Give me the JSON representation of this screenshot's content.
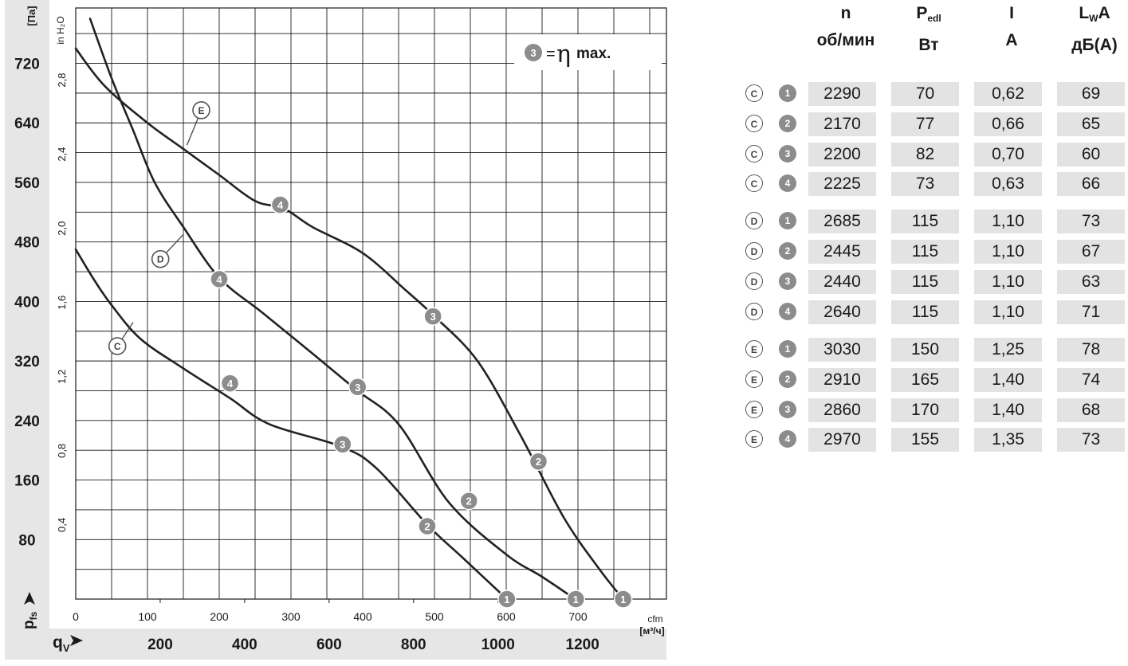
{
  "chart_data": {
    "type": "line",
    "x_primary": {
      "label": "cfm",
      "ticks": [
        0,
        100,
        200,
        300,
        400,
        500,
        600,
        700
      ],
      "range": [
        0,
        820
      ]
    },
    "x_secondary": {
      "symbol": "q",
      "symbol_sub": "V",
      "unit": "[м³/ч]",
      "ticks": [
        200,
        400,
        600,
        800,
        1000,
        1200
      ]
    },
    "y_primary": {
      "symbol": "p",
      "symbol_sub": "fs",
      "unit": "[Па]",
      "ticks": [
        80,
        160,
        240,
        320,
        400,
        480,
        560,
        640,
        720
      ],
      "range": [
        0,
        782
      ]
    },
    "y_secondary": {
      "unit": "in H₂O",
      "ticks": [
        "0,4",
        "0,8",
        "1,2",
        "1,6",
        "2,0",
        "2,4",
        "2,8"
      ]
    },
    "legend": {
      "marker": "3",
      "text": "=",
      "eta": "η",
      "max": "max."
    },
    "series": [
      {
        "name": "C",
        "x": [
          0,
          25,
          50,
          90,
          150,
          215,
          270,
          370,
          420,
          490,
          540,
          601
        ],
        "y": [
          470,
          430,
          395,
          350,
          310,
          270,
          235,
          205,
          175,
          100,
          55,
          0
        ],
        "label_at": [
          58,
          340
        ],
        "leader_to": [
          80,
          372
        ]
      },
      {
        "name": "D",
        "x": [
          20,
          50,
          80,
          110,
          150,
          200,
          260,
          330,
          390,
          450,
          520,
          600,
          650,
          696
        ],
        "y": [
          780,
          700,
          630,
          560,
          500,
          432,
          385,
          330,
          282,
          235,
          130,
          60,
          30,
          0
        ],
        "label_at": [
          118,
          457
        ],
        "leader_to": [
          150,
          490
        ]
      },
      {
        "name": "E",
        "x": [
          0,
          40,
          100,
          150,
          200,
          250,
          290,
          330,
          400,
          460,
          500,
          560,
          620,
          680,
          730,
          763
        ],
        "y": [
          740,
          690,
          640,
          605,
          570,
          535,
          525,
          500,
          465,
          415,
          380,
          320,
          220,
          110,
          40,
          0
        ],
        "label_at": [
          175,
          657
        ],
        "leader_to": [
          155,
          610
        ]
      }
    ],
    "operating_points": [
      {
        "label": "4",
        "series": "C",
        "x": 215,
        "y": 290
      },
      {
        "label": "3",
        "series": "C",
        "x": 372,
        "y": 208
      },
      {
        "label": "2",
        "series": "C",
        "x": 490,
        "y": 98
      },
      {
        "label": "1",
        "series": "C",
        "x": 601,
        "y": 0
      },
      {
        "label": "4",
        "series": "D",
        "x": 200,
        "y": 430
      },
      {
        "label": "3",
        "series": "D",
        "x": 393,
        "y": 285
      },
      {
        "label": "2",
        "series": "D",
        "x": 548,
        "y": 132
      },
      {
        "label": "1",
        "series": "D",
        "x": 697,
        "y": 0
      },
      {
        "label": "4",
        "series": "E",
        "x": 285,
        "y": 530
      },
      {
        "label": "3",
        "series": "E",
        "x": 498,
        "y": 380
      },
      {
        "label": "2",
        "series": "E",
        "x": 645,
        "y": 185
      },
      {
        "label": "1",
        "series": "E",
        "x": 763,
        "y": 0
      }
    ]
  },
  "table": {
    "headers": [
      {
        "l1": "n",
        "l1_sub": "",
        "l1_tail": "",
        "l2": "об/мин"
      },
      {
        "l1": "P",
        "l1_sub": "edl",
        "l1_tail": "",
        "l2": "Вт"
      },
      {
        "l1": "I",
        "l1_sub": "",
        "l1_tail": "",
        "l2": "А"
      },
      {
        "l1": "L",
        "l1_sub": "W",
        "l1_tail": "A",
        "l2": "дБ(А)"
      }
    ],
    "rows": [
      {
        "curve": "C",
        "point": "1",
        "values": [
          "2290",
          "70",
          "0,62",
          "69"
        ]
      },
      {
        "curve": "C",
        "point": "2",
        "values": [
          "2170",
          "77",
          "0,66",
          "65"
        ]
      },
      {
        "curve": "C",
        "point": "3",
        "values": [
          "2200",
          "82",
          "0,70",
          "60"
        ]
      },
      {
        "curve": "C",
        "point": "4",
        "values": [
          "2225",
          "73",
          "0,63",
          "66"
        ]
      },
      {
        "curve": "D",
        "point": "1",
        "values": [
          "2685",
          "115",
          "1,10",
          "73"
        ]
      },
      {
        "curve": "D",
        "point": "2",
        "values": [
          "2445",
          "115",
          "1,10",
          "67"
        ]
      },
      {
        "curve": "D",
        "point": "3",
        "values": [
          "2440",
          "115",
          "1,10",
          "63"
        ]
      },
      {
        "curve": "D",
        "point": "4",
        "values": [
          "2640",
          "115",
          "1,10",
          "71"
        ]
      },
      {
        "curve": "E",
        "point": "1",
        "values": [
          "3030",
          "150",
          "1,25",
          "78"
        ]
      },
      {
        "curve": "E",
        "point": "2",
        "values": [
          "2910",
          "165",
          "1,40",
          "74"
        ]
      },
      {
        "curve": "E",
        "point": "3",
        "values": [
          "2860",
          "170",
          "1,40",
          "68"
        ]
      },
      {
        "curve": "E",
        "point": "4",
        "values": [
          "2970",
          "155",
          "1,35",
          "73"
        ]
      }
    ]
  },
  "colors": {
    "curve": "#222222",
    "grid": "#1a1a1a",
    "point_fill": "#8c8c8c",
    "axis_band": "#e6e6e6",
    "cell_fill": "#e3e3e3"
  }
}
